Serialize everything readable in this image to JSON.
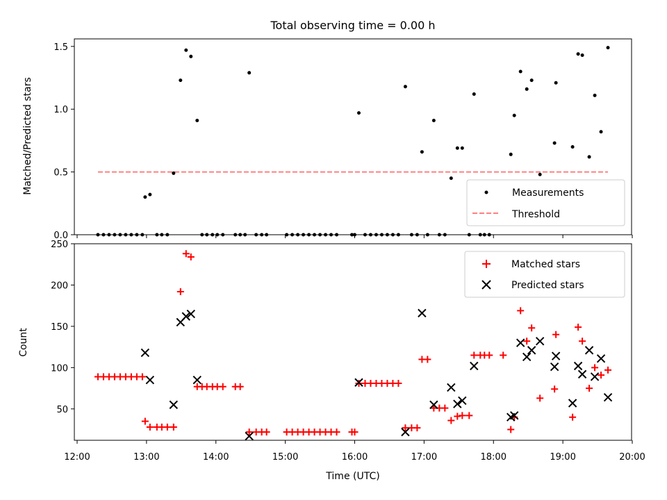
{
  "chart_data": [
    {
      "type": "scatter",
      "panel": "top",
      "title": "Total observing time = 0.00 h",
      "xlabel": "",
      "ylabel": "Matched/Predicted stars",
      "xlim": [
        11.96,
        19.99
      ],
      "ylim": [
        0,
        1.56
      ],
      "yticks": [
        0.0,
        0.5,
        1.0,
        1.5
      ],
      "ytick_labels": [
        "0.0",
        "0.5",
        "1.0",
        "1.5"
      ],
      "grid": false,
      "legend_position": "lower-right",
      "series": [
        {
          "name": "Measurements",
          "marker": "dot",
          "color": "#000000",
          "points": [
            [
              12.3,
              0
            ],
            [
              12.38,
              0
            ],
            [
              12.46,
              0
            ],
            [
              12.54,
              0
            ],
            [
              12.62,
              0
            ],
            [
              12.7,
              0
            ],
            [
              12.78,
              0
            ],
            [
              12.86,
              0
            ],
            [
              12.94,
              0
            ],
            [
              12.98,
              0.3
            ],
            [
              13.05,
              0.32
            ],
            [
              13.15,
              0
            ],
            [
              13.22,
              0
            ],
            [
              13.3,
              0
            ],
            [
              13.39,
              0.49
            ],
            [
              13.49,
              1.23
            ],
            [
              13.57,
              1.47
            ],
            [
              13.64,
              1.42
            ],
            [
              13.73,
              0.91
            ],
            [
              13.8,
              0
            ],
            [
              13.87,
              0
            ],
            [
              13.95,
              0
            ],
            [
              14.02,
              0
            ],
            [
              14.1,
              0
            ],
            [
              14.28,
              0
            ],
            [
              14.35,
              0
            ],
            [
              14.42,
              0
            ],
            [
              14.48,
              1.29
            ],
            [
              14.58,
              0
            ],
            [
              14.66,
              0
            ],
            [
              14.73,
              0
            ],
            [
              15.02,
              0
            ],
            [
              15.1,
              0
            ],
            [
              15.18,
              0
            ],
            [
              15.26,
              0
            ],
            [
              15.34,
              0
            ],
            [
              15.42,
              0
            ],
            [
              15.5,
              0
            ],
            [
              15.58,
              0
            ],
            [
              15.66,
              0
            ],
            [
              15.74,
              0
            ],
            [
              15.96,
              0
            ],
            [
              16.0,
              0
            ],
            [
              16.06,
              0.97
            ],
            [
              16.15,
              0
            ],
            [
              16.23,
              0
            ],
            [
              16.31,
              0
            ],
            [
              16.39,
              0
            ],
            [
              16.47,
              0
            ],
            [
              16.55,
              0
            ],
            [
              16.63,
              0
            ],
            [
              16.73,
              1.18
            ],
            [
              16.82,
              0
            ],
            [
              16.9,
              0
            ],
            [
              16.97,
              0.66
            ],
            [
              17.05,
              0
            ],
            [
              17.14,
              0.91
            ],
            [
              17.22,
              0
            ],
            [
              17.3,
              0
            ],
            [
              17.39,
              0.45
            ],
            [
              17.48,
              0.69
            ],
            [
              17.55,
              0.69
            ],
            [
              17.65,
              0
            ],
            [
              17.72,
              1.12
            ],
            [
              17.81,
              0
            ],
            [
              17.87,
              0
            ],
            [
              17.94,
              0
            ],
            [
              18.25,
              0.64
            ],
            [
              18.3,
              0.95
            ],
            [
              18.39,
              1.3
            ],
            [
              18.48,
              1.16
            ],
            [
              18.55,
              1.23
            ],
            [
              18.67,
              0.48
            ],
            [
              18.88,
              0.73
            ],
            [
              18.9,
              1.21
            ],
            [
              19.14,
              0.7
            ],
            [
              19.22,
              1.44
            ],
            [
              19.28,
              1.43
            ],
            [
              19.38,
              0.62
            ],
            [
              19.46,
              1.11
            ],
            [
              19.55,
              0.82
            ],
            [
              19.65,
              1.49
            ]
          ]
        },
        {
          "name": "Threshold",
          "style": "dashed",
          "color": "#ff7f7f",
          "x": [
            12.3,
            19.65
          ],
          "y": [
            0.5,
            0.5
          ]
        }
      ]
    },
    {
      "type": "scatter",
      "panel": "bottom",
      "title": "",
      "xlabel": "Time (UTC)",
      "ylabel": "Count",
      "xlim": [
        11.96,
        19.99
      ],
      "ylim": [
        12,
        250
      ],
      "xticks": [
        12,
        13,
        14,
        15,
        16,
        17,
        18,
        19,
        20
      ],
      "xtick_labels": [
        "12:00",
        "13:00",
        "14:00",
        "15:00",
        "16:00",
        "17:00",
        "18:00",
        "19:00",
        "20:00"
      ],
      "yticks": [
        50,
        100,
        150,
        200,
        250
      ],
      "ytick_labels": [
        "50",
        "100",
        "150",
        "200",
        "250"
      ],
      "grid": false,
      "legend_position": "upper-right",
      "series": [
        {
          "name": "Matched stars",
          "marker": "plus",
          "color": "#ff0000",
          "points": [
            [
              12.3,
              89
            ],
            [
              12.38,
              89
            ],
            [
              12.46,
              89
            ],
            [
              12.54,
              89
            ],
            [
              12.62,
              89
            ],
            [
              12.7,
              89
            ],
            [
              12.78,
              89
            ],
            [
              12.86,
              89
            ],
            [
              12.94,
              89
            ],
            [
              12.98,
              35
            ],
            [
              13.05,
              28
            ],
            [
              13.15,
              28
            ],
            [
              13.22,
              28
            ],
            [
              13.3,
              28
            ],
            [
              13.39,
              28
            ],
            [
              13.49,
              192
            ],
            [
              13.57,
              238
            ],
            [
              13.64,
              234
            ],
            [
              13.73,
              77
            ],
            [
              13.8,
              77
            ],
            [
              13.87,
              77
            ],
            [
              13.95,
              77
            ],
            [
              14.02,
              77
            ],
            [
              14.1,
              77
            ],
            [
              14.28,
              77
            ],
            [
              14.35,
              77
            ],
            [
              14.48,
              22
            ],
            [
              14.58,
              22
            ],
            [
              14.66,
              22
            ],
            [
              14.73,
              22
            ],
            [
              15.02,
              22
            ],
            [
              15.1,
              22
            ],
            [
              15.18,
              22
            ],
            [
              15.26,
              22
            ],
            [
              15.34,
              22
            ],
            [
              15.42,
              22
            ],
            [
              15.5,
              22
            ],
            [
              15.58,
              22
            ],
            [
              15.66,
              22
            ],
            [
              15.74,
              22
            ],
            [
              15.96,
              22
            ],
            [
              16.0,
              22
            ],
            [
              16.06,
              81
            ],
            [
              16.15,
              81
            ],
            [
              16.23,
              81
            ],
            [
              16.31,
              81
            ],
            [
              16.39,
              81
            ],
            [
              16.47,
              81
            ],
            [
              16.55,
              81
            ],
            [
              16.63,
              81
            ],
            [
              16.73,
              27
            ],
            [
              16.82,
              27
            ],
            [
              16.9,
              27
            ],
            [
              16.97,
              110
            ],
            [
              17.05,
              110
            ],
            [
              17.14,
              51
            ],
            [
              17.22,
              51
            ],
            [
              17.3,
              51
            ],
            [
              17.39,
              36
            ],
            [
              17.48,
              41
            ],
            [
              17.55,
              42
            ],
            [
              17.65,
              42
            ],
            [
              17.72,
              115
            ],
            [
              17.81,
              115
            ],
            [
              17.87,
              115
            ],
            [
              17.94,
              115
            ],
            [
              18.14,
              115
            ],
            [
              18.25,
              25
            ],
            [
              18.3,
              40
            ],
            [
              18.39,
              169
            ],
            [
              18.48,
              132
            ],
            [
              18.55,
              148
            ],
            [
              18.67,
              63
            ],
            [
              18.88,
              74
            ],
            [
              18.9,
              140
            ],
            [
              19.14,
              40
            ],
            [
              19.22,
              149
            ],
            [
              19.28,
              132
            ],
            [
              19.38,
              75
            ],
            [
              19.46,
              100
            ],
            [
              19.55,
              91
            ],
            [
              19.65,
              97
            ]
          ]
        },
        {
          "name": "Predicted stars",
          "marker": "cross",
          "color": "#000000",
          "points": [
            [
              12.98,
              118
            ],
            [
              13.05,
              85
            ],
            [
              13.39,
              55
            ],
            [
              13.49,
              155
            ],
            [
              13.57,
              162
            ],
            [
              13.64,
              165
            ],
            [
              13.73,
              85
            ],
            [
              14.48,
              17
            ],
            [
              16.06,
              82
            ],
            [
              16.73,
              22
            ],
            [
              16.97,
              166
            ],
            [
              17.14,
              55
            ],
            [
              17.39,
              76
            ],
            [
              17.48,
              56
            ],
            [
              17.55,
              60
            ],
            [
              17.72,
              102
            ],
            [
              18.25,
              40
            ],
            [
              18.3,
              42
            ],
            [
              18.39,
              130
            ],
            [
              18.48,
              113
            ],
            [
              18.55,
              121
            ],
            [
              18.67,
              132
            ],
            [
              18.88,
              101
            ],
            [
              18.9,
              114
            ],
            [
              19.14,
              57
            ],
            [
              19.22,
              102
            ],
            [
              19.28,
              92
            ],
            [
              19.38,
              121
            ],
            [
              19.46,
              89
            ],
            [
              19.55,
              111
            ],
            [
              19.65,
              64
            ]
          ]
        }
      ]
    }
  ]
}
